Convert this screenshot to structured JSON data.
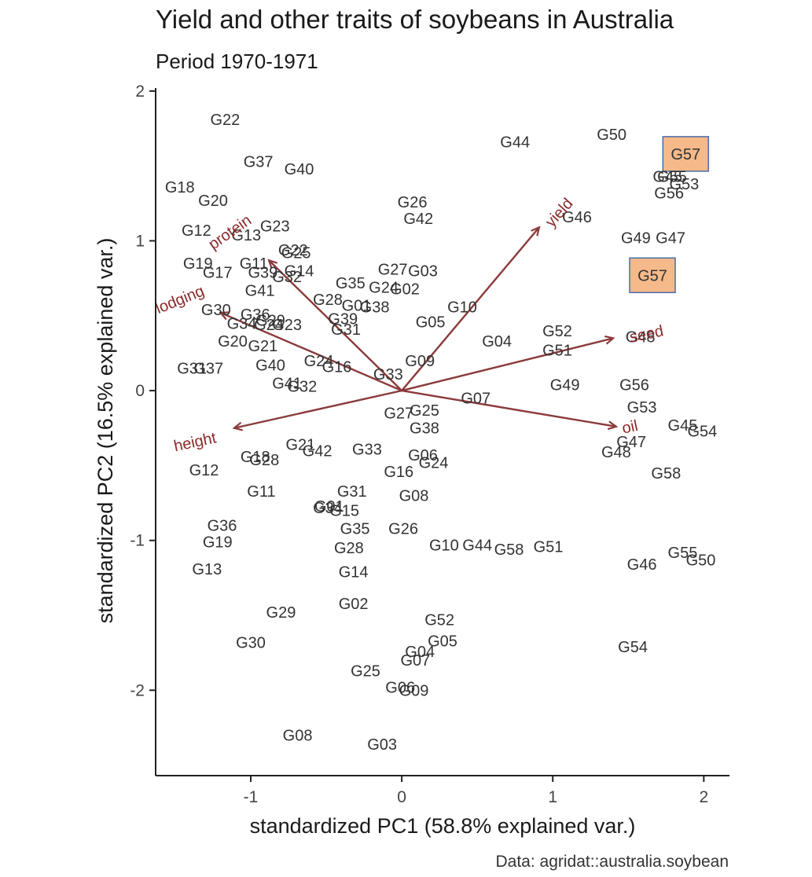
{
  "chart_data": {
    "type": "scatter",
    "title": "Yield and other traits of soybeans in Australia",
    "subtitle": "Period 1970-1971",
    "xlabel": "standardized PC1 (58.8% explained var.)",
    "ylabel": "standardized PC2 (16.5% explained var.)",
    "caption": "Data: agridat::australia.soybean",
    "xlim": [
      -1.63,
      2.17
    ],
    "ylim": [
      -2.57,
      2.02
    ],
    "xticks": [
      -1,
      0,
      1,
      2
    ],
    "yticks": [
      -2,
      -1,
      0,
      1,
      2
    ],
    "grid": false,
    "colors": {
      "arrow": "#8b3a3a",
      "highlight_fill": "#f5b98a",
      "highlight_border": "#4a6da8"
    },
    "series": [
      {
        "points": [
          {
            "label": "G22",
            "x": -1.17,
            "y": 1.81
          },
          {
            "label": "G37",
            "x": -0.95,
            "y": 1.53
          },
          {
            "label": "G40",
            "x": -0.68,
            "y": 1.48
          },
          {
            "label": "G18",
            "x": -1.47,
            "y": 1.36
          },
          {
            "label": "G20",
            "x": -1.25,
            "y": 1.27
          },
          {
            "label": "G23",
            "x": -0.84,
            "y": 1.1
          },
          {
            "label": "G12",
            "x": -1.36,
            "y": 1.07
          },
          {
            "label": "G13",
            "x": -1.03,
            "y": 1.04
          },
          {
            "label": "G22",
            "x": -0.72,
            "y": 0.94
          },
          {
            "label": "G25",
            "x": -0.7,
            "y": 0.92
          },
          {
            "label": "G19",
            "x": -1.35,
            "y": 0.85
          },
          {
            "label": "G11",
            "x": -0.98,
            "y": 0.85
          },
          {
            "label": "G17",
            "x": -1.22,
            "y": 0.79
          },
          {
            "label": "G39",
            "x": -0.92,
            "y": 0.79
          },
          {
            "label": "G14",
            "x": -0.68,
            "y": 0.8
          },
          {
            "label": "G32",
            "x": -0.76,
            "y": 0.76
          },
          {
            "label": "G41",
            "x": -0.94,
            "y": 0.67
          },
          {
            "label": "G30",
            "x": -1.23,
            "y": 0.54
          },
          {
            "label": "G36",
            "x": -0.97,
            "y": 0.51
          },
          {
            "label": "G29",
            "x": -0.87,
            "y": 0.47
          },
          {
            "label": "G34",
            "x": -1.06,
            "y": 0.45
          },
          {
            "label": "G24",
            "x": -0.88,
            "y": 0.44
          },
          {
            "label": "G23",
            "x": -0.76,
            "y": 0.44
          },
          {
            "label": "G20",
            "x": -1.12,
            "y": 0.33
          },
          {
            "label": "G21",
            "x": -0.92,
            "y": 0.3
          },
          {
            "label": "G31",
            "x": -1.39,
            "y": 0.15
          },
          {
            "label": "G37",
            "x": -1.28,
            "y": 0.15
          },
          {
            "label": "G40",
            "x": -0.87,
            "y": 0.17
          },
          {
            "label": "G24",
            "x": -0.55,
            "y": 0.2
          },
          {
            "label": "G16",
            "x": -0.43,
            "y": 0.16
          },
          {
            "label": "G41",
            "x": -0.76,
            "y": 0.05
          },
          {
            "label": "G32",
            "x": -0.66,
            "y": 0.03
          },
          {
            "label": "G35",
            "x": -0.34,
            "y": 0.72
          },
          {
            "label": "G28",
            "x": -0.49,
            "y": 0.61
          },
          {
            "label": "G01",
            "x": -0.3,
            "y": 0.57
          },
          {
            "label": "G38",
            "x": -0.18,
            "y": 0.56
          },
          {
            "label": "G39",
            "x": -0.39,
            "y": 0.48
          },
          {
            "label": "G31",
            "x": -0.37,
            "y": 0.41
          },
          {
            "label": "G26",
            "x": 0.07,
            "y": 1.26
          },
          {
            "label": "G42",
            "x": 0.11,
            "y": 1.15
          },
          {
            "label": "G27",
            "x": -0.06,
            "y": 0.81
          },
          {
            "label": "G03",
            "x": 0.14,
            "y": 0.8
          },
          {
            "label": "G24",
            "x": -0.12,
            "y": 0.69
          },
          {
            "label": "G02",
            "x": 0.02,
            "y": 0.68
          },
          {
            "label": "G33",
            "x": -0.09,
            "y": 0.11
          },
          {
            "label": "G05",
            "x": 0.19,
            "y": 0.46
          },
          {
            "label": "G09",
            "x": 0.12,
            "y": 0.2
          },
          {
            "label": "G10",
            "x": 0.4,
            "y": 0.56
          },
          {
            "label": "G04",
            "x": 0.63,
            "y": 0.33
          },
          {
            "label": "G07",
            "x": 0.49,
            "y": -0.05
          },
          {
            "label": "G27",
            "x": -0.02,
            "y": -0.15
          },
          {
            "label": "G25",
            "x": 0.15,
            "y": -0.13
          },
          {
            "label": "G38",
            "x": 0.15,
            "y": -0.25
          },
          {
            "label": "G44",
            "x": 0.75,
            "y": 1.66
          },
          {
            "label": "G46",
            "x": 1.16,
            "y": 1.16
          },
          {
            "label": "G50",
            "x": 1.39,
            "y": 1.71
          },
          {
            "label": "G57",
            "x": 1.88,
            "y": 1.58
          },
          {
            "label": "G45",
            "x": 1.76,
            "y": 1.43
          },
          {
            "label": "G55",
            "x": 1.79,
            "y": 1.43
          },
          {
            "label": "G53",
            "x": 1.87,
            "y": 1.38
          },
          {
            "label": "G56",
            "x": 1.77,
            "y": 1.32
          },
          {
            "label": "G49",
            "x": 1.55,
            "y": 1.02
          },
          {
            "label": "G47",
            "x": 1.78,
            "y": 1.02
          },
          {
            "label": "G57",
            "x": 1.66,
            "y": 0.77
          },
          {
            "label": "G52",
            "x": 1.03,
            "y": 0.4
          },
          {
            "label": "G51",
            "x": 1.03,
            "y": 0.27
          },
          {
            "label": "G48",
            "x": 1.58,
            "y": 0.36
          },
          {
            "label": "G49",
            "x": 1.08,
            "y": 0.04
          },
          {
            "label": "G56",
            "x": 1.54,
            "y": 0.04
          },
          {
            "label": "G53",
            "x": 1.59,
            "y": -0.11
          },
          {
            "label": "G45",
            "x": 1.86,
            "y": -0.23
          },
          {
            "label": "G54",
            "x": 1.99,
            "y": -0.27
          },
          {
            "label": "G47",
            "x": 1.52,
            "y": -0.34
          },
          {
            "label": "G48",
            "x": 1.42,
            "y": -0.41
          },
          {
            "label": "G58",
            "x": 1.75,
            "y": -0.55
          },
          {
            "label": "G21",
            "x": -0.67,
            "y": -0.36
          },
          {
            "label": "G42",
            "x": -0.56,
            "y": -0.4
          },
          {
            "label": "G33",
            "x": -0.23,
            "y": -0.39
          },
          {
            "label": "G18",
            "x": -0.97,
            "y": -0.44
          },
          {
            "label": "G28",
            "x": -0.91,
            "y": -0.46
          },
          {
            "label": "G06",
            "x": 0.14,
            "y": -0.43
          },
          {
            "label": "G24",
            "x": 0.21,
            "y": -0.48
          },
          {
            "label": "G16",
            "x": -0.02,
            "y": -0.54
          },
          {
            "label": "G12",
            "x": -1.31,
            "y": -0.53
          },
          {
            "label": "G11",
            "x": -0.93,
            "y": -0.67
          },
          {
            "label": "G31",
            "x": -0.33,
            "y": -0.67
          },
          {
            "label": "G01",
            "x": -0.48,
            "y": -0.77
          },
          {
            "label": "G34",
            "x": -0.49,
            "y": -0.78
          },
          {
            "label": "G15",
            "x": -0.38,
            "y": -0.8
          },
          {
            "label": "G08",
            "x": 0.08,
            "y": -0.7
          },
          {
            "label": "G36",
            "x": -1.19,
            "y": -0.9
          },
          {
            "label": "G35",
            "x": -0.31,
            "y": -0.92
          },
          {
            "label": "G26",
            "x": 0.01,
            "y": -0.92
          },
          {
            "label": "G19",
            "x": -1.22,
            "y": -1.01
          },
          {
            "label": "G28",
            "x": -0.35,
            "y": -1.05
          },
          {
            "label": "G10",
            "x": 0.28,
            "y": -1.03
          },
          {
            "label": "G44",
            "x": 0.5,
            "y": -1.03
          },
          {
            "label": "G58",
            "x": 0.71,
            "y": -1.06
          },
          {
            "label": "G51",
            "x": 0.97,
            "y": -1.04
          },
          {
            "label": "G13",
            "x": -1.29,
            "y": -1.19
          },
          {
            "label": "G14",
            "x": -0.32,
            "y": -1.21
          },
          {
            "label": "G55",
            "x": 1.86,
            "y": -1.08
          },
          {
            "label": "G50",
            "x": 1.98,
            "y": -1.13
          },
          {
            "label": "G46",
            "x": 1.59,
            "y": -1.16
          },
          {
            "label": "G02",
            "x": -0.32,
            "y": -1.42
          },
          {
            "label": "G29",
            "x": -0.8,
            "y": -1.48
          },
          {
            "label": "G52",
            "x": 0.25,
            "y": -1.53
          },
          {
            "label": "G05",
            "x": 0.27,
            "y": -1.67
          },
          {
            "label": "G30",
            "x": -1.0,
            "y": -1.68
          },
          {
            "label": "G54",
            "x": 1.53,
            "y": -1.71
          },
          {
            "label": "G04",
            "x": 0.12,
            "y": -1.74
          },
          {
            "label": "G07",
            "x": 0.09,
            "y": -1.8
          },
          {
            "label": "G25",
            "x": -0.24,
            "y": -1.87
          },
          {
            "label": "G06",
            "x": -0.01,
            "y": -1.98
          },
          {
            "label": "G09",
            "x": 0.08,
            "y": -2.0
          },
          {
            "label": "G08",
            "x": -0.69,
            "y": -2.3
          },
          {
            "label": "G03",
            "x": -0.13,
            "y": -2.36
          }
        ]
      }
    ],
    "loadings": [
      {
        "label": "protein",
        "x": -0.88,
        "y": 0.87,
        "label_x": -1.14,
        "label_y": 1.06,
        "angle": -35
      },
      {
        "label": "lodging",
        "x": -1.2,
        "y": 0.52,
        "label_x": -1.47,
        "label_y": 0.61,
        "angle": -22
      },
      {
        "label": "yield",
        "x": 0.91,
        "y": 1.09,
        "label_x": 1.04,
        "label_y": 1.19,
        "angle": -48
      },
      {
        "label": "seed",
        "x": 1.4,
        "y": 0.35,
        "label_x": 1.62,
        "label_y": 0.38,
        "angle": -12
      },
      {
        "label": "oil",
        "x": 1.42,
        "y": -0.24,
        "label_x": 1.51,
        "label_y": -0.24,
        "angle": -12
      },
      {
        "label": "height",
        "x": -1.11,
        "y": -0.25,
        "label_x": -1.37,
        "label_y": -0.34,
        "angle": -12
      }
    ],
    "highlighted": [
      "G57"
    ]
  }
}
